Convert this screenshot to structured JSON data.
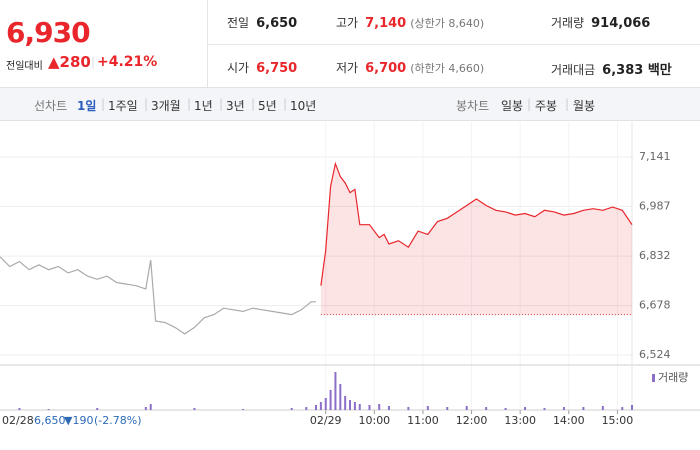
{
  "quote": {
    "price": "6,930",
    "change_label": "전일대비",
    "change": "▲280",
    "change_pct": "+4.21%"
  },
  "stats": [
    [
      {
        "label": "전일",
        "value": "6,650"
      },
      {
        "label": "고가",
        "value": "7,140",
        "note": "(상한가 8,640)"
      },
      {
        "label": "거래량",
        "value": "914,066"
      }
    ],
    [
      {
        "label": "시가",
        "value": "6,750"
      },
      {
        "label": "저가",
        "value": "6,700",
        "note": "(하한가 4,660)"
      },
      {
        "label": "거래대금",
        "value": "6,383 백만"
      }
    ]
  ],
  "toolbar": {
    "line_label": "선차트",
    "periods": [
      "1일",
      "1주일",
      "3개월",
      "1년",
      "3년",
      "5년",
      "10년"
    ],
    "active": 0,
    "candle_label": "봉차트",
    "candles": [
      "일봉",
      "주봉",
      "월봉"
    ]
  },
  "chart_data": {
    "type": "line",
    "xlim": [
      0,
      130
    ],
    "ylim": [
      6493,
      7250
    ],
    "yticks": [
      {
        "value": 7141,
        "label": "7,141"
      },
      {
        "value": 6987,
        "label": "6,987"
      },
      {
        "value": 6832,
        "label": "6,832"
      },
      {
        "value": 6678,
        "label": "6,678"
      },
      {
        "value": 6524,
        "label": "6,524"
      }
    ],
    "xticks": [
      {
        "value": 67,
        "label": "02/29"
      },
      {
        "value": 77,
        "label": "10:00"
      },
      {
        "value": 87,
        "label": "11:00"
      },
      {
        "value": 97,
        "label": "12:00"
      },
      {
        "value": 107,
        "label": "13:00"
      },
      {
        "value": 117,
        "label": "14:00"
      },
      {
        "value": 127,
        "label": "15:00"
      }
    ],
    "grid": true,
    "baseline": 6650,
    "series": [
      {
        "color": "#aaaaaa",
        "fill": false,
        "x": [
          0,
          2,
          4,
          6,
          8,
          10,
          12,
          14,
          16,
          18,
          20,
          22,
          24,
          26,
          28,
          30,
          31,
          32,
          34,
          36,
          38,
          40,
          42,
          44,
          46,
          48,
          50,
          52,
          54,
          56,
          58,
          60,
          62,
          64,
          65
        ],
        "values": [
          6830,
          6800,
          6815,
          6790,
          6805,
          6790,
          6800,
          6780,
          6790,
          6770,
          6760,
          6770,
          6750,
          6745,
          6740,
          6730,
          6820,
          6630,
          6625,
          6610,
          6590,
          6610,
          6640,
          6650,
          6670,
          6665,
          6660,
          6670,
          6665,
          6660,
          6655,
          6650,
          6665,
          6690,
          6690
        ]
      },
      {
        "color": "#e8262c",
        "fill": true,
        "x": [
          66,
          67,
          68,
          69,
          70,
          71,
          72,
          73,
          74,
          76,
          78,
          79,
          80,
          82,
          84,
          86,
          88,
          90,
          92,
          94,
          96,
          98,
          100,
          102,
          104,
          106,
          108,
          110,
          112,
          114,
          116,
          118,
          120,
          122,
          124,
          126,
          128,
          130
        ],
        "values": [
          6740,
          6850,
          7050,
          7120,
          7080,
          7060,
          7030,
          7040,
          6930,
          6930,
          6890,
          6900,
          6870,
          6880,
          6860,
          6910,
          6900,
          6940,
          6950,
          6970,
          6990,
          7010,
          6990,
          6975,
          6970,
          6960,
          6965,
          6955,
          6975,
          6970,
          6960,
          6965,
          6975,
          6980,
          6975,
          6985,
          6975,
          6930
        ]
      }
    ],
    "volume": {
      "name": "거래량",
      "color": "#8c6fc8",
      "ylim": [
        0,
        40
      ],
      "x": [
        4,
        10,
        20,
        30,
        31,
        40,
        50,
        60,
        63,
        65,
        66,
        67,
        68,
        69,
        70,
        71,
        72,
        73,
        74,
        76,
        78,
        80,
        84,
        88,
        92,
        96,
        100,
        104,
        108,
        112,
        116,
        120,
        124,
        128,
        130
      ],
      "values": [
        2,
        1,
        2,
        3,
        6,
        2,
        1,
        2,
        3,
        5,
        8,
        12,
        20,
        38,
        26,
        14,
        10,
        8,
        6,
        5,
        6,
        4,
        3,
        4,
        3,
        4,
        3,
        2,
        3,
        2,
        3,
        3,
        4,
        3,
        5
      ]
    },
    "prev_date": "02/28",
    "prev_close": "6,650",
    "prev_change": "▼190",
    "prev_change_pct": "(-2.78%)"
  }
}
